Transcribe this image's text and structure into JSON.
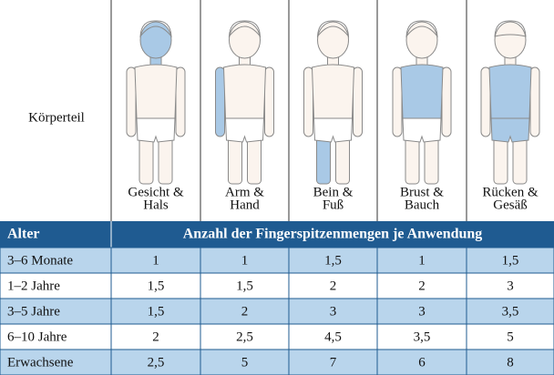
{
  "header": {
    "row_label": "Körperteil",
    "body_parts": [
      [
        "Gesicht &",
        "Hals"
      ],
      [
        "Arm &",
        "Hand"
      ],
      [
        "Bein &",
        "Fuß"
      ],
      [
        "Brust &",
        "Bauch"
      ],
      [
        "Rücken &",
        "Gesäß"
      ]
    ]
  },
  "table": {
    "columns": [
      "Alter",
      "Anzahl der Fingerspitzenmengen je Anwendung"
    ],
    "rows": [
      [
        "3–6 Monate",
        "1",
        "1",
        "1,5",
        "1",
        "1,5"
      ],
      [
        "1–2 Jahre",
        "1,5",
        "1,5",
        "2",
        "2",
        "3"
      ],
      [
        "3–5 Jahre",
        "1,5",
        "2",
        "3",
        "3",
        "3,5"
      ],
      [
        "6–10 Jahre",
        "2",
        "2,5",
        "4,5",
        "3,5",
        "5"
      ],
      [
        "Erwachsene",
        "2,5",
        "5",
        "7",
        "6",
        "8"
      ]
    ]
  }
}
